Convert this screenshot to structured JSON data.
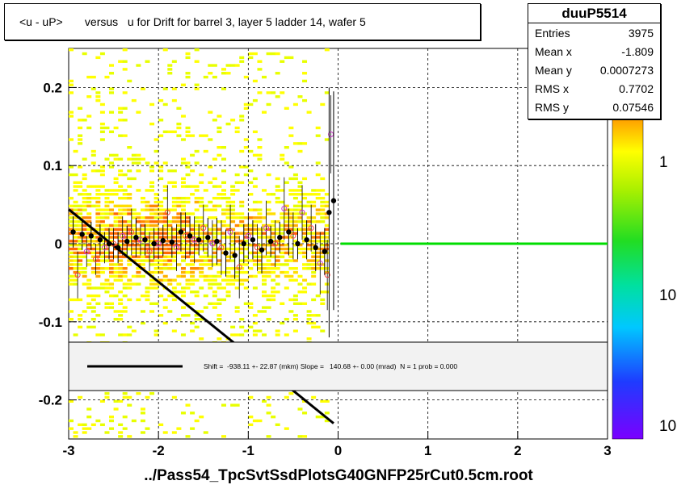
{
  "title": "<u - uP>       versus   u for Drift for barrel 3, layer 5 ladder 14, wafer 5",
  "stats": {
    "name": "duuP5514",
    "rows": [
      {
        "label": "Entries",
        "value": "3975"
      },
      {
        "label": "Mean x",
        "value": "-1.809"
      },
      {
        "label": "Mean y",
        "value": "0.0007273"
      },
      {
        "label": "RMS x",
        "value": "0.7702"
      },
      {
        "label": "RMS y",
        "value": "0.07546"
      }
    ]
  },
  "footer": "../Pass54_TpcSvtSsdPlotsG40GNFP25rCut0.5cm.root",
  "colors": {
    "fit_line": "#000000",
    "zero_line": "#00dd00",
    "profile_open": "#ff4444",
    "profile_open_alt": "#cc33cc"
  },
  "chart_data": {
    "type": "scatter",
    "subtype": "2d-histogram with profile",
    "xlim": [
      -3,
      3
    ],
    "ylim": [
      -0.25,
      0.25
    ],
    "xticks": [
      "-3",
      "-2",
      "-1",
      "0",
      "1",
      "2",
      "3"
    ],
    "yticks": [
      "-0.2",
      "-0.1",
      "0",
      "0.1",
      "0.2"
    ],
    "grid": true,
    "colorbar": {
      "labels": [
        "1",
        "10",
        "10"
      ],
      "scale": "log"
    },
    "fit_line": {
      "x": [
        -3.0,
        -0.05
      ],
      "y": [
        0.044,
        -0.23
      ]
    },
    "zero_line": {
      "x": [
        0.0,
        3.0
      ],
      "y": [
        0.0,
        0.0
      ]
    },
    "legend_text": "Shift =  -938.11 +- 22.87 (mkm) Slope =   140.68 +- 0.00 (mrad)  N = 1 prob = 0.000",
    "profile_filled": {
      "x": [
        -2.95,
        -2.85,
        -2.75,
        -2.65,
        -2.55,
        -2.45,
        -2.35,
        -2.25,
        -2.15,
        -2.05,
        -1.95,
        -1.85,
        -1.75,
        -1.65,
        -1.55,
        -1.45,
        -1.35,
        -1.25,
        -1.15,
        -1.05,
        -0.95,
        -0.85,
        -0.75,
        -0.65,
        -0.55,
        -0.45,
        -0.35,
        -0.25,
        -0.15,
        -0.1,
        -0.05
      ],
      "y": [
        0.015,
        0.012,
        0.01,
        0.005,
        0.0,
        -0.005,
        0.003,
        0.008,
        0.005,
        0.0,
        0.004,
        0.002,
        0.015,
        0.01,
        0.005,
        0.008,
        0.003,
        -0.012,
        -0.015,
        0.0,
        0.005,
        -0.008,
        0.003,
        0.008,
        0.015,
        0.0,
        0.005,
        -0.005,
        -0.01,
        0.04,
        0.055
      ],
      "err": [
        0.02,
        0.02,
        0.018,
        0.02,
        0.02,
        0.02,
        0.02,
        0.025,
        0.02,
        0.02,
        0.02,
        0.02,
        0.025,
        0.025,
        0.02,
        0.025,
        0.03,
        0.03,
        0.03,
        0.025,
        0.025,
        0.03,
        0.02,
        0.02,
        0.03,
        0.02,
        0.025,
        0.03,
        0.03,
        0.16,
        0.14
      ]
    },
    "profile_open": {
      "x": [
        -2.9,
        -2.8,
        -2.7,
        -2.6,
        -2.5,
        -2.4,
        -2.3,
        -2.2,
        -2.1,
        -2.0,
        -1.9,
        -1.8,
        -1.7,
        -1.6,
        -1.5,
        -1.4,
        -1.3,
        -1.2,
        -1.1,
        -1.0,
        -0.9,
        -0.8,
        -0.7,
        -0.6,
        -0.5,
        -0.4,
        -0.3,
        -0.2,
        -0.12,
        -0.08
      ],
      "y": [
        -0.04,
        -0.01,
        -0.02,
        -0.005,
        0.0,
        0.01,
        0.015,
        0.005,
        -0.01,
        0.0,
        0.04,
        -0.005,
        0.01,
        0.005,
        0.02,
        0.0,
        -0.005,
        0.015,
        -0.03,
        0.01,
        -0.005,
        0.02,
        0.0,
        0.045,
        0.01,
        0.04,
        0.02,
        -0.025,
        -0.04,
        0.14
      ],
      "err": [
        0.03,
        0.02,
        0.02,
        0.02,
        0.02,
        0.025,
        0.03,
        0.02,
        0.025,
        0.02,
        0.035,
        0.03,
        0.03,
        0.03,
        0.03,
        0.03,
        0.035,
        0.035,
        0.04,
        0.03,
        0.03,
        0.035,
        0.03,
        0.04,
        0.03,
        0.035,
        0.03,
        0.04,
        0.045,
        0.05
      ]
    }
  }
}
